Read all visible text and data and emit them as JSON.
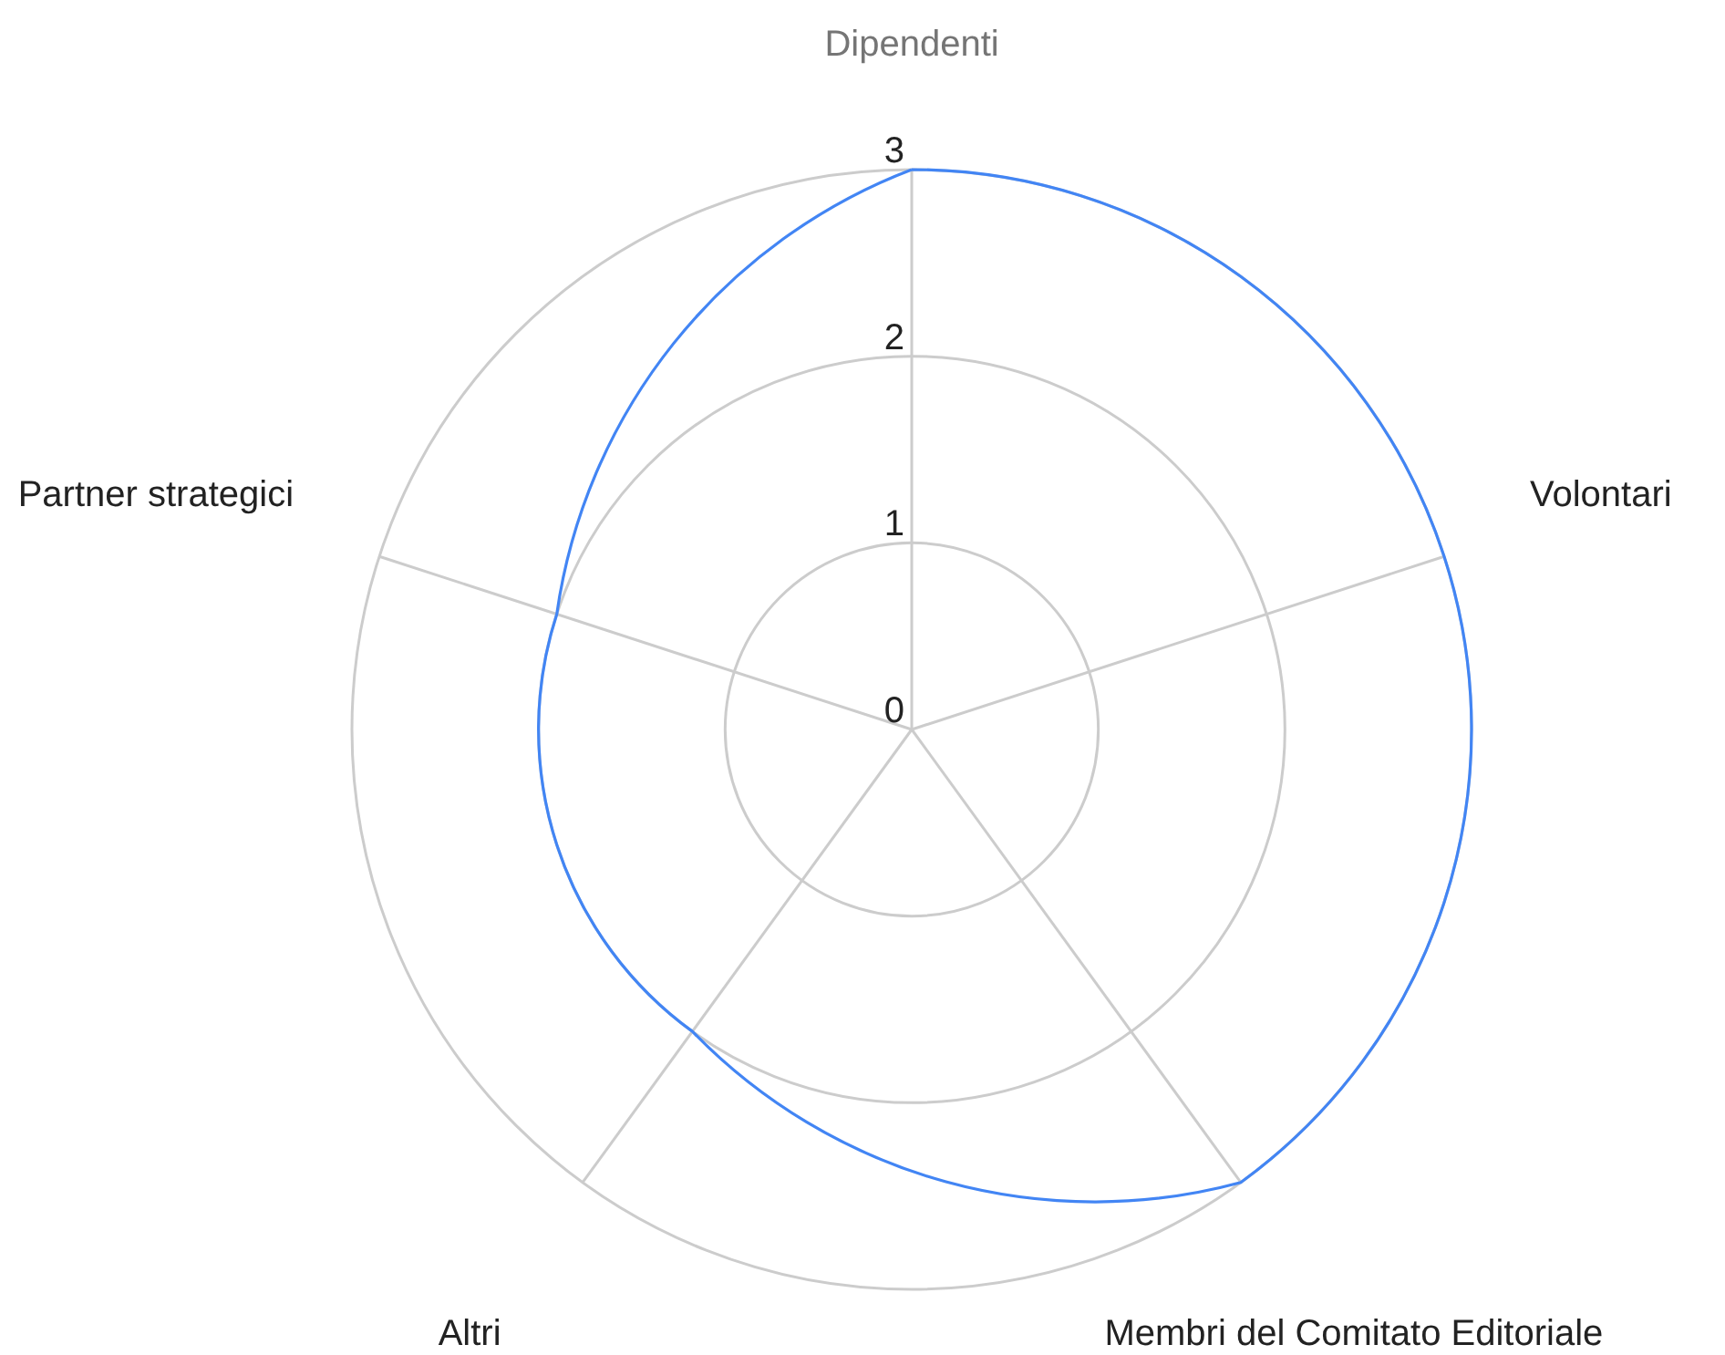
{
  "chart_data": {
    "type": "radar",
    "categories": [
      "Dipendenti",
      "Volontari",
      "Membri del Comitato Editoriale",
      "Altri",
      "Partner strategici"
    ],
    "series": [
      {
        "color": "#4285f4",
        "values": [
          3,
          3,
          3,
          2,
          2
        ]
      }
    ],
    "ylim": [
      0,
      3
    ],
    "yticks": [
      0,
      1,
      2,
      3
    ],
    "grid": true
  }
}
